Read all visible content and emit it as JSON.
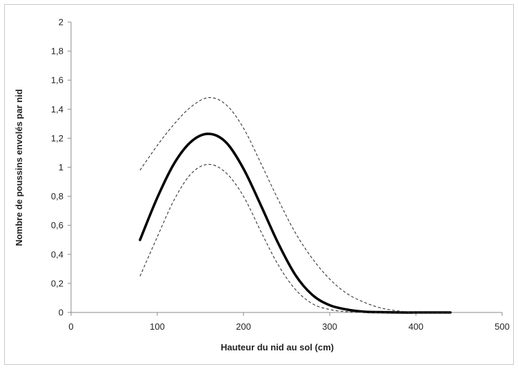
{
  "chart_data": {
    "type": "line",
    "title": "",
    "xlabel": "Hauteur du nid au sol (cm)",
    "ylabel": "Nombre de poussins envolés par nid",
    "xlim": [
      0,
      500
    ],
    "ylim": [
      0,
      2
    ],
    "x_ticks": [
      0,
      100,
      200,
      300,
      400,
      500
    ],
    "y_ticks": [
      0,
      0.2,
      0.4,
      0.6,
      0.8,
      1,
      1.2,
      1.4,
      1.6,
      1.8,
      2
    ],
    "x_tick_labels": [
      "0",
      "100",
      "200",
      "300",
      "400",
      "500"
    ],
    "y_tick_labels": [
      "0",
      "0,2",
      "0,4",
      "0,6",
      "0,8",
      "1",
      "1,2",
      "1,4",
      "1,6",
      "1,8",
      "2"
    ],
    "grid": false,
    "series": [
      {
        "style": "solid-thick",
        "color": "#000000",
        "x": [
          80,
          100,
          120,
          140,
          160,
          180,
          200,
          220,
          240,
          260,
          280,
          300,
          320,
          340,
          360,
          380,
          400,
          420,
          440
        ],
        "values": [
          0.5,
          0.79,
          1.03,
          1.18,
          1.23,
          1.17,
          0.99,
          0.74,
          0.48,
          0.26,
          0.12,
          0.05,
          0.02,
          0.005,
          0.002,
          0.0,
          0.0,
          0.0,
          0.0
        ]
      },
      {
        "style": "dashed-upper",
        "color": "#333333",
        "x": [
          80,
          100,
          120,
          140,
          160,
          180,
          200,
          220,
          240,
          260,
          280,
          300,
          320,
          340,
          360,
          380,
          400,
          420,
          440
        ],
        "values": [
          0.98,
          1.15,
          1.3,
          1.42,
          1.48,
          1.43,
          1.27,
          1.03,
          0.78,
          0.55,
          0.37,
          0.23,
          0.13,
          0.07,
          0.03,
          0.01,
          0.002,
          0.0,
          0.0
        ]
      },
      {
        "style": "dashed-lower",
        "color": "#333333",
        "x": [
          80,
          100,
          120,
          140,
          160,
          180,
          200,
          220,
          240,
          260,
          280,
          300,
          320,
          340,
          360,
          380,
          400,
          420,
          440
        ],
        "values": [
          0.25,
          0.52,
          0.78,
          0.96,
          1.02,
          0.96,
          0.8,
          0.56,
          0.33,
          0.16,
          0.06,
          0.02,
          0.005,
          0.0,
          0.0,
          0.0,
          0.0,
          0.0,
          0.0
        ]
      }
    ]
  }
}
